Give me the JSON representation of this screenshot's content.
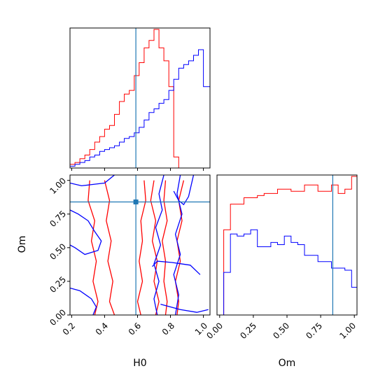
{
  "chart_data": {
    "type": "corner",
    "colors": {
      "series_a": "#ff0000",
      "series_b": "#0000ff",
      "truth": "#1f77b4"
    },
    "truth": {
      "H0": 0.59,
      "Om": 0.84
    },
    "panels": [
      {
        "id": "hist-h0",
        "type": "histogram",
        "parameter": "H0",
        "xlim": [
          0.19,
          1.04
        ],
        "bin_edges": [
          0.19,
          0.22,
          0.25,
          0.28,
          0.31,
          0.34,
          0.37,
          0.4,
          0.43,
          0.46,
          0.49,
          0.52,
          0.55,
          0.58,
          0.61,
          0.64,
          0.67,
          0.7,
          0.73,
          0.76,
          0.79,
          0.82,
          0.85,
          0.88,
          0.91,
          0.94,
          0.97,
          1.0,
          1.04
        ],
        "series": [
          {
            "color_key": "series_a",
            "counts": [
              2,
              3,
              5,
              7,
              10,
              14,
              17,
              21,
              23,
              29,
              36,
              40,
              42,
              50,
              57,
              65,
              69,
              75,
              65,
              58,
              44,
              6,
              0,
              0,
              0,
              0,
              0,
              0
            ]
          },
          {
            "color_key": "series_b",
            "counts": [
              1,
              2,
              3,
              4,
              6,
              7,
              9,
              10,
              11,
              12,
              14,
              16,
              17,
              19,
              22,
              26,
              30,
              32,
              35,
              37,
              42,
              48,
              54,
              56,
              58,
              61,
              64,
              44
            ]
          }
        ]
      },
      {
        "id": "contour-h0-om",
        "type": "contour",
        "xparam": "H0",
        "yparam": "Om",
        "xlim": [
          0.19,
          1.04
        ],
        "ylim": [
          0.0,
          1.04
        ],
        "xticks": [
          "0.2",
          "0.4",
          "0.6",
          "0.8",
          "1.0"
        ],
        "yticks": [
          "0.00",
          "0.25",
          "0.50",
          "0.75",
          "1.00"
        ],
        "xlabel": "H0",
        "ylabel": "Om",
        "series": [
          {
            "color_key": "series_a",
            "contours": [
              [
                [
                  0.31,
                  1.0
                ],
                [
                  0.3,
                  0.85
                ],
                [
                  0.34,
                  0.7
                ],
                [
                  0.32,
                  0.55
                ],
                [
                  0.35,
                  0.4
                ],
                [
                  0.33,
                  0.25
                ],
                [
                  0.36,
                  0.1
                ],
                [
                  0.34,
                  0.0
                ]
              ],
              [
                [
                  0.4,
                  1.0
                ],
                [
                  0.43,
                  0.85
                ],
                [
                  0.41,
                  0.7
                ],
                [
                  0.44,
                  0.55
                ],
                [
                  0.42,
                  0.4
                ],
                [
                  0.45,
                  0.25
                ],
                [
                  0.43,
                  0.1
                ],
                [
                  0.46,
                  0.0
                ]
              ],
              [
                [
                  0.64,
                  1.0
                ],
                [
                  0.65,
                  0.85
                ],
                [
                  0.62,
                  0.7
                ],
                [
                  0.63,
                  0.55
                ],
                [
                  0.61,
                  0.4
                ],
                [
                  0.63,
                  0.25
                ],
                [
                  0.6,
                  0.1
                ],
                [
                  0.62,
                  0.0
                ]
              ],
              [
                [
                  0.7,
                  1.0
                ],
                [
                  0.68,
                  0.85
                ],
                [
                  0.71,
                  0.7
                ],
                [
                  0.69,
                  0.55
                ],
                [
                  0.72,
                  0.4
                ],
                [
                  0.7,
                  0.25
                ],
                [
                  0.73,
                  0.1
                ],
                [
                  0.71,
                  0.0
                ]
              ],
              [
                [
                  0.77,
                  1.0
                ],
                [
                  0.76,
                  0.85
                ],
                [
                  0.78,
                  0.7
                ],
                [
                  0.75,
                  0.55
                ],
                [
                  0.77,
                  0.4
                ],
                [
                  0.76,
                  0.25
                ],
                [
                  0.78,
                  0.1
                ],
                [
                  0.77,
                  0.0
                ]
              ],
              [
                [
                  0.88,
                  1.0
                ],
                [
                  0.85,
                  0.85
                ],
                [
                  0.87,
                  0.7
                ],
                [
                  0.84,
                  0.55
                ],
                [
                  0.86,
                  0.4
                ],
                [
                  0.83,
                  0.25
                ],
                [
                  0.85,
                  0.1
                ],
                [
                  0.84,
                  0.0
                ]
              ]
            ]
          },
          {
            "color_key": "series_b",
            "contours": [
              [
                [
                  0.19,
                  0.78
                ],
                [
                  0.24,
                  0.75
                ],
                [
                  0.3,
                  0.7
                ],
                [
                  0.34,
                  0.62
                ],
                [
                  0.38,
                  0.55
                ],
                [
                  0.36,
                  0.48
                ],
                [
                  0.28,
                  0.45
                ],
                [
                  0.22,
                  0.5
                ],
                [
                  0.19,
                  0.52
                ]
              ],
              [
                [
                  0.19,
                  0.2
                ],
                [
                  0.25,
                  0.18
                ],
                [
                  0.32,
                  0.12
                ],
                [
                  0.35,
                  0.06
                ],
                [
                  0.33,
                  0.0
                ]
              ],
              [
                [
                  0.19,
                  0.98
                ],
                [
                  0.26,
                  0.96
                ],
                [
                  0.4,
                  0.98
                ],
                [
                  0.46,
                  1.04
                ]
              ],
              [
                [
                  0.72,
                  0.0
                ],
                [
                  0.7,
                  0.12
                ],
                [
                  0.73,
                  0.25
                ],
                [
                  0.7,
                  0.38
                ],
                [
                  0.74,
                  0.52
                ],
                [
                  0.71,
                  0.65
                ],
                [
                  0.75,
                  0.78
                ],
                [
                  0.73,
                  0.9
                ],
                [
                  0.76,
                  1.04
                ]
              ],
              [
                [
                  0.86,
                  1.04
                ],
                [
                  0.84,
                  0.9
                ],
                [
                  0.87,
                  0.75
                ],
                [
                  0.83,
                  0.6
                ],
                [
                  0.86,
                  0.45
                ],
                [
                  0.82,
                  0.3
                ],
                [
                  0.85,
                  0.15
                ],
                [
                  0.83,
                  0.0
                ]
              ],
              [
                [
                  0.69,
                  0.36
                ],
                [
                  0.72,
                  0.4
                ],
                [
                  0.81,
                  0.39
                ],
                [
                  0.92,
                  0.37
                ],
                [
                  0.98,
                  0.3
                ]
              ],
              [
                [
                  0.74,
                  0.08
                ],
                [
                  0.86,
                  0.04
                ],
                [
                  0.96,
                  0.02
                ],
                [
                  1.03,
                  0.04
                ]
              ],
              [
                [
                  0.82,
                  0.92
                ],
                [
                  0.85,
                  0.85
                ],
                [
                  0.88,
                  0.82
                ],
                [
                  0.91,
                  0.88
                ],
                [
                  0.94,
                  1.04
                ]
              ]
            ]
          }
        ]
      },
      {
        "id": "hist-om",
        "type": "histogram",
        "parameter": "Om",
        "xlim": [
          -0.02,
          1.02
        ],
        "xticks": [
          "0.00",
          "0.25",
          "0.50",
          "0.75",
          "1.00"
        ],
        "xlabel": "Om",
        "bin_edges": [
          -0.02,
          0.03,
          0.08,
          0.13,
          0.18,
          0.23,
          0.28,
          0.33,
          0.38,
          0.43,
          0.48,
          0.53,
          0.58,
          0.63,
          0.68,
          0.73,
          0.78,
          0.83,
          0.88,
          0.93,
          0.98,
          1.02
        ],
        "series": [
          {
            "color_key": "series_a",
            "counts": [
              0,
              40,
              52,
              52,
              55,
              55,
              56,
              57,
              57,
              59,
              59,
              58,
              58,
              61,
              61,
              58,
              58,
              61,
              57,
              59,
              65
            ]
          },
          {
            "color_key": "series_b",
            "counts": [
              0,
              20,
              38,
              37,
              38,
              40,
              32,
              32,
              34,
              33,
              37,
              34,
              33,
              28,
              28,
              25,
              25,
              22,
              22,
              21,
              13
            ]
          }
        ]
      }
    ]
  }
}
